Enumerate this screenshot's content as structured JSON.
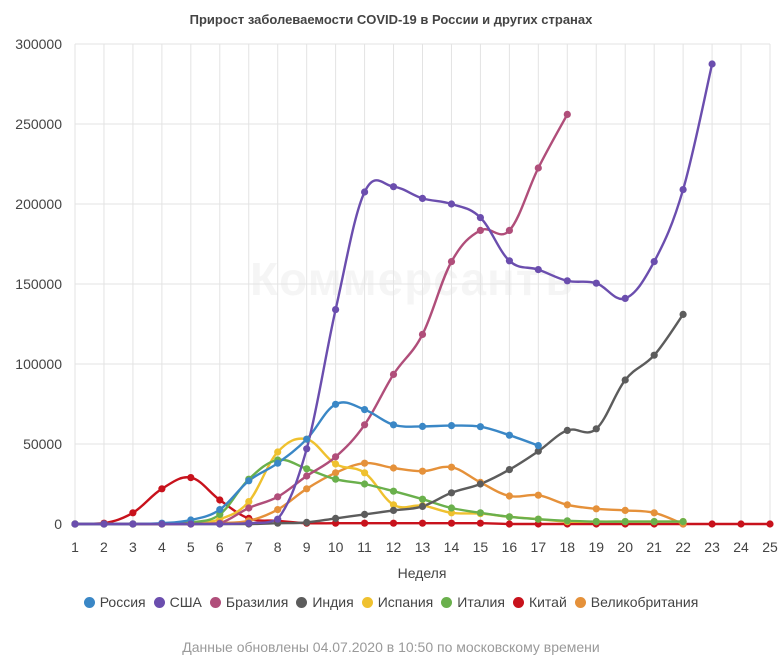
{
  "chart_data": {
    "type": "line",
    "title": "Прирост заболеваемости COVID-19 в России и других странах",
    "xlabel": "Неделя",
    "ylabel": "",
    "x": [
      1,
      2,
      3,
      4,
      5,
      6,
      7,
      8,
      9,
      10,
      11,
      12,
      13,
      14,
      15,
      16,
      17,
      18,
      19,
      20,
      21,
      22,
      23,
      24,
      25
    ],
    "xlim": [
      1,
      25
    ],
    "ylim": [
      0,
      300000
    ],
    "yticks": [
      0,
      50000,
      100000,
      150000,
      200000,
      250000,
      300000
    ],
    "grid": true,
    "legend": "bottom",
    "series": [
      {
        "name": "Россия",
        "color": "#3a87c6",
        "x": [
          1,
          2,
          3,
          4,
          5,
          6,
          7,
          8,
          9,
          10,
          11,
          12,
          13,
          14,
          15,
          16,
          17
        ],
        "values": [
          0,
          0,
          0,
          500,
          2500,
          9000,
          27000,
          38000,
          53000,
          74800,
          71500,
          62000,
          61000,
          61500,
          60800,
          55500,
          49000
        ]
      },
      {
        "name": "США",
        "color": "#6b4eae",
        "x": [
          1,
          2,
          3,
          4,
          5,
          6,
          7,
          8,
          9,
          10,
          11,
          12,
          13,
          14,
          15,
          16,
          17,
          18,
          19,
          20,
          21,
          22,
          23
        ],
        "values": [
          0,
          0,
          0,
          0,
          0,
          0,
          500,
          3000,
          47000,
          134000,
          207500,
          210800,
          203500,
          200000,
          191500,
          164500,
          159000,
          152000,
          150500,
          141000,
          164000,
          209000,
          287500
        ]
      },
      {
        "name": "Бразилия",
        "color": "#b04e7a",
        "x": [
          1,
          2,
          3,
          4,
          5,
          6,
          7,
          8,
          9,
          10,
          11,
          12,
          13,
          14,
          15,
          16,
          17,
          18
        ],
        "values": [
          0,
          0,
          0,
          0,
          0,
          500,
          10000,
          17000,
          30000,
          42000,
          62000,
          93500,
          118500,
          164000,
          183500,
          183500,
          222500,
          256000
        ]
      },
      {
        "name": "Индия",
        "color": "#5c5c5c",
        "x": [
          1,
          2,
          3,
          4,
          5,
          6,
          7,
          8,
          9,
          10,
          11,
          12,
          13,
          14,
          15,
          16,
          17,
          18,
          19,
          20,
          21,
          22
        ],
        "values": [
          0,
          0,
          0,
          0,
          0,
          0,
          0,
          500,
          1000,
          3500,
          6000,
          8500,
          11000,
          19500,
          25000,
          34000,
          45500,
          58500,
          59500,
          90000,
          105500,
          131000
        ]
      },
      {
        "name": "Испания",
        "color": "#efc12f",
        "x": [
          1,
          2,
          3,
          4,
          5,
          6,
          7,
          8,
          9,
          10,
          11,
          12,
          13,
          14,
          15,
          16,
          17,
          18,
          19,
          20,
          21,
          22
        ],
        "values": [
          0,
          0,
          0,
          0,
          500,
          3000,
          14000,
          45000,
          53000,
          37500,
          32000,
          12000,
          11500,
          7000,
          6500,
          4500,
          3000,
          1500,
          1500,
          1500,
          1500,
          1500
        ]
      },
      {
        "name": "Италия",
        "color": "#6ab04c",
        "x": [
          1,
          2,
          3,
          4,
          5,
          6,
          7,
          8,
          9,
          10,
          11,
          12,
          13,
          14,
          15,
          16,
          17,
          18,
          19,
          20,
          21,
          22
        ],
        "values": [
          0,
          0,
          0,
          0,
          1000,
          6000,
          28000,
          40000,
          34500,
          28000,
          25000,
          20500,
          15500,
          10000,
          7000,
          4500,
          3000,
          2000,
          1500,
          1500,
          1500,
          1500
        ]
      },
      {
        "name": "Китай",
        "color": "#c8121c",
        "x": [
          1,
          2,
          3,
          4,
          5,
          6,
          7,
          8,
          9,
          10,
          11,
          12,
          13,
          14,
          15,
          16,
          17,
          18,
          19,
          20,
          21,
          22,
          23,
          24,
          25
        ],
        "values": [
          0,
          500,
          7000,
          22000,
          29000,
          15000,
          3500,
          2000,
          500,
          500,
          500,
          500,
          500,
          500,
          500,
          0,
          0,
          0,
          0,
          0,
          0,
          0,
          0,
          0,
          0
        ]
      },
      {
        "name": "Великобритания",
        "color": "#e5913a",
        "x": [
          1,
          2,
          3,
          4,
          5,
          6,
          7,
          8,
          9,
          10,
          11,
          12,
          13,
          14,
          15,
          16,
          17,
          18,
          19,
          20,
          21,
          22
        ],
        "values": [
          0,
          0,
          0,
          0,
          0,
          500,
          2000,
          9000,
          22000,
          32000,
          38000,
          35000,
          33000,
          35500,
          26000,
          17500,
          18000,
          12000,
          9500,
          8500,
          7000,
          0
        ]
      }
    ],
    "footer": "Данные обновлены 04.07.2020 в 10:50 по московскому времени",
    "watermark": "Коммерсантъ"
  }
}
